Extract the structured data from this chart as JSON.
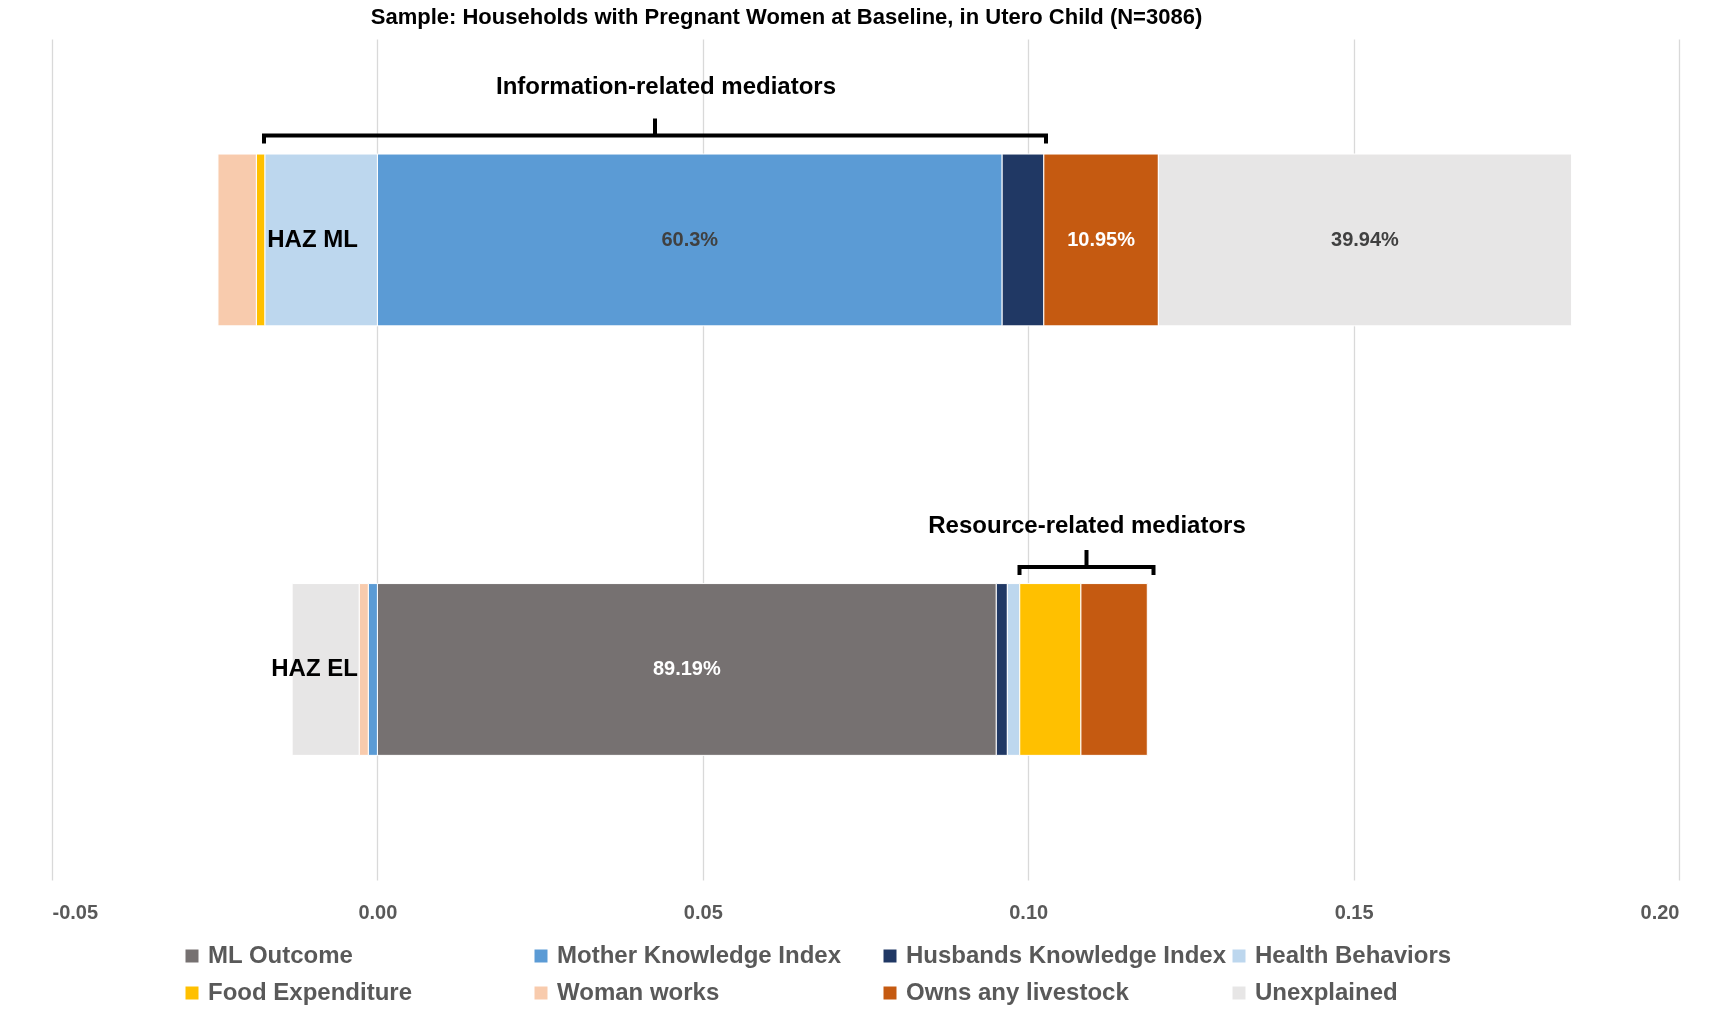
{
  "chart_data": {
    "type": "bar",
    "title": "Sample: Households with Pregnant Women at Baseline, in Utero Child (N=3086)",
    "orientation": "horizontal",
    "stacked": true,
    "categories": [
      "HAZ ML",
      "HAZ EL"
    ],
    "series": [
      {
        "name": "ML Outcome",
        "color": "#767171",
        "values": [
          null,
          0.0951
        ]
      },
      {
        "name": "Mother Knowledge Index",
        "color": "#5b9bd5",
        "values": [
          0.096,
          -0.0014
        ]
      },
      {
        "name": "Husbands Knowledge Index",
        "color": "#203864",
        "values": [
          0.0064,
          0.0017
        ]
      },
      {
        "name": "Health Behaviors",
        "color": "#bdd7ee",
        "values": [
          -0.0173,
          0.0019
        ]
      },
      {
        "name": "Food Expenditure",
        "color": "#ffc000",
        "values": [
          -0.0013,
          0.0094
        ]
      },
      {
        "name": "Woman works",
        "color": "#f8cbad",
        "values": [
          -0.0059,
          -0.0014
        ]
      },
      {
        "name": "Owns any livestock",
        "color": "#c55a11",
        "values": [
          0.0176,
          0.0102
        ]
      },
      {
        "name": "Unexplained",
        "color": "#e7e6e6",
        "values": [
          0.0635,
          -0.0103
        ]
      }
    ],
    "xlim": [
      -0.05,
      0.2
    ],
    "xticks": [
      -0.05,
      {
        "value": 0,
        "label": "0.00"
      },
      0.05,
      {
        "value": 0.1,
        "label": "0.10"
      },
      0.15,
      {
        "value": 0.2,
        "label": "0.20"
      }
    ],
    "grid": "x",
    "legend": "bottom",
    "annotations": [
      "Information-related mediators",
      "Resource-related mediators",
      "60.3%",
      "10.95%",
      "39.94%",
      "89.19%"
    ]
  }
}
